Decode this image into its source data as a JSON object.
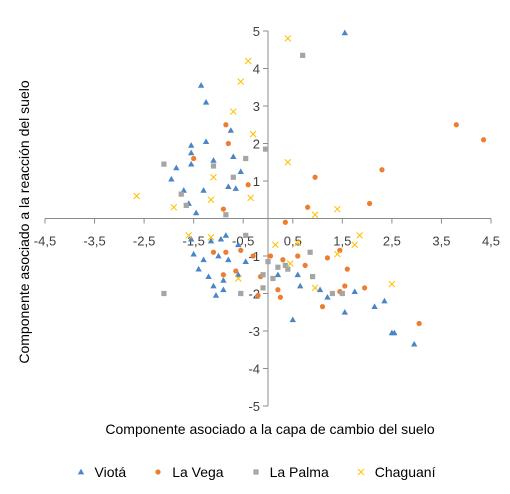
{
  "chart_data": {
    "type": "scatter",
    "title": "",
    "xlabel": "Componente asociado a la capa de cambio del suelo",
    "ylabel": "Componente asociado a la reacción del suelo",
    "xlim": [
      -4.5,
      4.5
    ],
    "ylim": [
      -5,
      5
    ],
    "xticks": [
      -4.5,
      -3.5,
      -2.5,
      -1.5,
      -0.5,
      0.5,
      1.5,
      2.5,
      3.5,
      4.5
    ],
    "xtick_labels": [
      "-4,5",
      "-3,5",
      "-2,5",
      "-1,5",
      "-0,5",
      "0,5",
      "1,5",
      "2,5",
      "3,5",
      "4,5"
    ],
    "yticks": [
      5,
      4,
      3,
      2,
      1,
      -1,
      -2,
      -3,
      -4,
      -5
    ],
    "ytick_labels": [
      "5",
      "4",
      "3",
      "2",
      "1",
      "-1",
      "-2",
      "-3",
      "-4",
      "-5"
    ],
    "grid": false,
    "legend_position": "bottom",
    "series": [
      {
        "name": "Viotá",
        "color": "#4a86c6",
        "marker": "triangle",
        "points": [
          [
            1.55,
            4.95
          ],
          [
            -1.35,
            3.55
          ],
          [
            -1.25,
            3.1
          ],
          [
            -0.75,
            2.35
          ],
          [
            -1.25,
            2.05
          ],
          [
            -1.55,
            1.95
          ],
          [
            -1.55,
            1.75
          ],
          [
            -1.55,
            1.45
          ],
          [
            -1.1,
            1.55
          ],
          [
            -0.7,
            1.65
          ],
          [
            -0.55,
            1.25
          ],
          [
            -1.85,
            1.35
          ],
          [
            -1.95,
            1.05
          ],
          [
            -1.7,
            0.75
          ],
          [
            -1.3,
            0.75
          ],
          [
            -0.8,
            0.85
          ],
          [
            -0.65,
            0.8
          ],
          [
            -1.6,
            0.4
          ],
          [
            -1.45,
            0.15
          ],
          [
            -1.55,
            -0.55
          ],
          [
            -1.15,
            -0.6
          ],
          [
            -0.95,
            -0.55
          ],
          [
            -0.6,
            -0.7
          ],
          [
            -1.5,
            -0.95
          ],
          [
            -1.3,
            -1.1
          ],
          [
            -1.0,
            -1.0
          ],
          [
            -0.8,
            -1.1
          ],
          [
            -0.45,
            -1.15
          ],
          [
            -1.4,
            -1.35
          ],
          [
            -1.2,
            -1.55
          ],
          [
            -0.9,
            -1.65
          ],
          [
            -0.6,
            -1.5
          ],
          [
            -1.1,
            -1.8
          ],
          [
            -0.9,
            -1.9
          ],
          [
            -1.05,
            -2.05
          ],
          [
            0.2,
            -1.5
          ],
          [
            0.5,
            -2.7
          ],
          [
            0.6,
            -1.5
          ],
          [
            0.65,
            -1.8
          ],
          [
            1.05,
            -1.9
          ],
          [
            1.2,
            -2.1
          ],
          [
            1.55,
            -2.5
          ],
          [
            1.75,
            -1.95
          ],
          [
            2.15,
            -2.35
          ],
          [
            2.35,
            -2.2
          ],
          [
            2.5,
            -3.05
          ],
          [
            2.55,
            -3.05
          ],
          [
            2.95,
            -3.35
          ],
          [
            -0.85,
            -0.45
          ]
        ]
      },
      {
        "name": "La Vega",
        "color": "#ed7d31",
        "marker": "circle",
        "points": [
          [
            3.8,
            2.5
          ],
          [
            4.35,
            2.1
          ],
          [
            2.3,
            1.3
          ],
          [
            -0.85,
            2.5
          ],
          [
            -0.8,
            2.0
          ],
          [
            0.95,
            1.1
          ],
          [
            -0.4,
            0.9
          ],
          [
            2.05,
            0.4
          ],
          [
            -0.9,
            0.25
          ],
          [
            -1.5,
            1.6
          ],
          [
            0.8,
            0.3
          ],
          [
            0.35,
            -0.1
          ],
          [
            -1.1,
            -0.9
          ],
          [
            -0.85,
            -0.9
          ],
          [
            -0.55,
            -0.85
          ],
          [
            -0.3,
            -1.0
          ],
          [
            0.05,
            -1.0
          ],
          [
            0.3,
            -1.1
          ],
          [
            0.6,
            -1.0
          ],
          [
            0.75,
            -1.25
          ],
          [
            1.2,
            -1.05
          ],
          [
            1.6,
            -1.35
          ],
          [
            -0.65,
            -1.4
          ],
          [
            -0.9,
            -1.5
          ],
          [
            -0.15,
            -1.55
          ],
          [
            0.2,
            -1.9
          ],
          [
            0.25,
            -2.1
          ],
          [
            -0.2,
            -2.05
          ],
          [
            1.1,
            -2.35
          ],
          [
            1.45,
            -1.95
          ],
          [
            1.55,
            -1.8
          ],
          [
            1.95,
            -1.85
          ],
          [
            3.05,
            -2.8
          ],
          [
            -0.55,
            -2.0
          ],
          [
            1.45,
            -0.85
          ]
        ]
      },
      {
        "name": "La Palma",
        "color": "#a5a5a5",
        "marker": "square",
        "points": [
          [
            0.7,
            4.35
          ],
          [
            -0.05,
            1.85
          ],
          [
            -0.45,
            1.6
          ],
          [
            -2.1,
            1.45
          ],
          [
            -1.1,
            1.4
          ],
          [
            -0.7,
            1.1
          ],
          [
            -1.75,
            0.65
          ],
          [
            -1.65,
            0.35
          ],
          [
            -0.85,
            0.1
          ],
          [
            -0.45,
            -0.45
          ],
          [
            0.0,
            -1.15
          ],
          [
            0.2,
            -1.3
          ],
          [
            0.4,
            -1.35
          ],
          [
            0.1,
            -1.6
          ],
          [
            -0.1,
            -1.5
          ],
          [
            -0.1,
            -1.85
          ],
          [
            0.85,
            -0.9
          ],
          [
            0.9,
            -1.55
          ],
          [
            1.3,
            -2.0
          ],
          [
            1.5,
            -2.0
          ],
          [
            -2.1,
            -2.0
          ],
          [
            -0.55,
            -2.0
          ],
          [
            0.35,
            -1.25
          ]
        ]
      },
      {
        "name": "Chaguaní",
        "color": "#ffc000",
        "marker": "x",
        "points": [
          [
            0.4,
            4.8
          ],
          [
            -0.4,
            4.2
          ],
          [
            -0.55,
            3.65
          ],
          [
            -0.7,
            2.85
          ],
          [
            -0.3,
            2.25
          ],
          [
            0.4,
            1.5
          ],
          [
            -1.1,
            1.1
          ],
          [
            -1.15,
            0.5
          ],
          [
            -0.35,
            0.55
          ],
          [
            -2.65,
            0.6
          ],
          [
            -1.9,
            0.3
          ],
          [
            0.95,
            0.1
          ],
          [
            1.4,
            0.25
          ],
          [
            1.85,
            -0.45
          ],
          [
            1.75,
            -0.7
          ],
          [
            0.15,
            -0.7
          ],
          [
            0.6,
            -0.65
          ],
          [
            0.45,
            -1.2
          ],
          [
            -1.15,
            -0.5
          ],
          [
            2.5,
            -1.75
          ],
          [
            0.95,
            -1.85
          ],
          [
            1.4,
            -0.95
          ],
          [
            -1.6,
            -0.45
          ],
          [
            -0.6,
            -1.6
          ]
        ]
      }
    ]
  }
}
